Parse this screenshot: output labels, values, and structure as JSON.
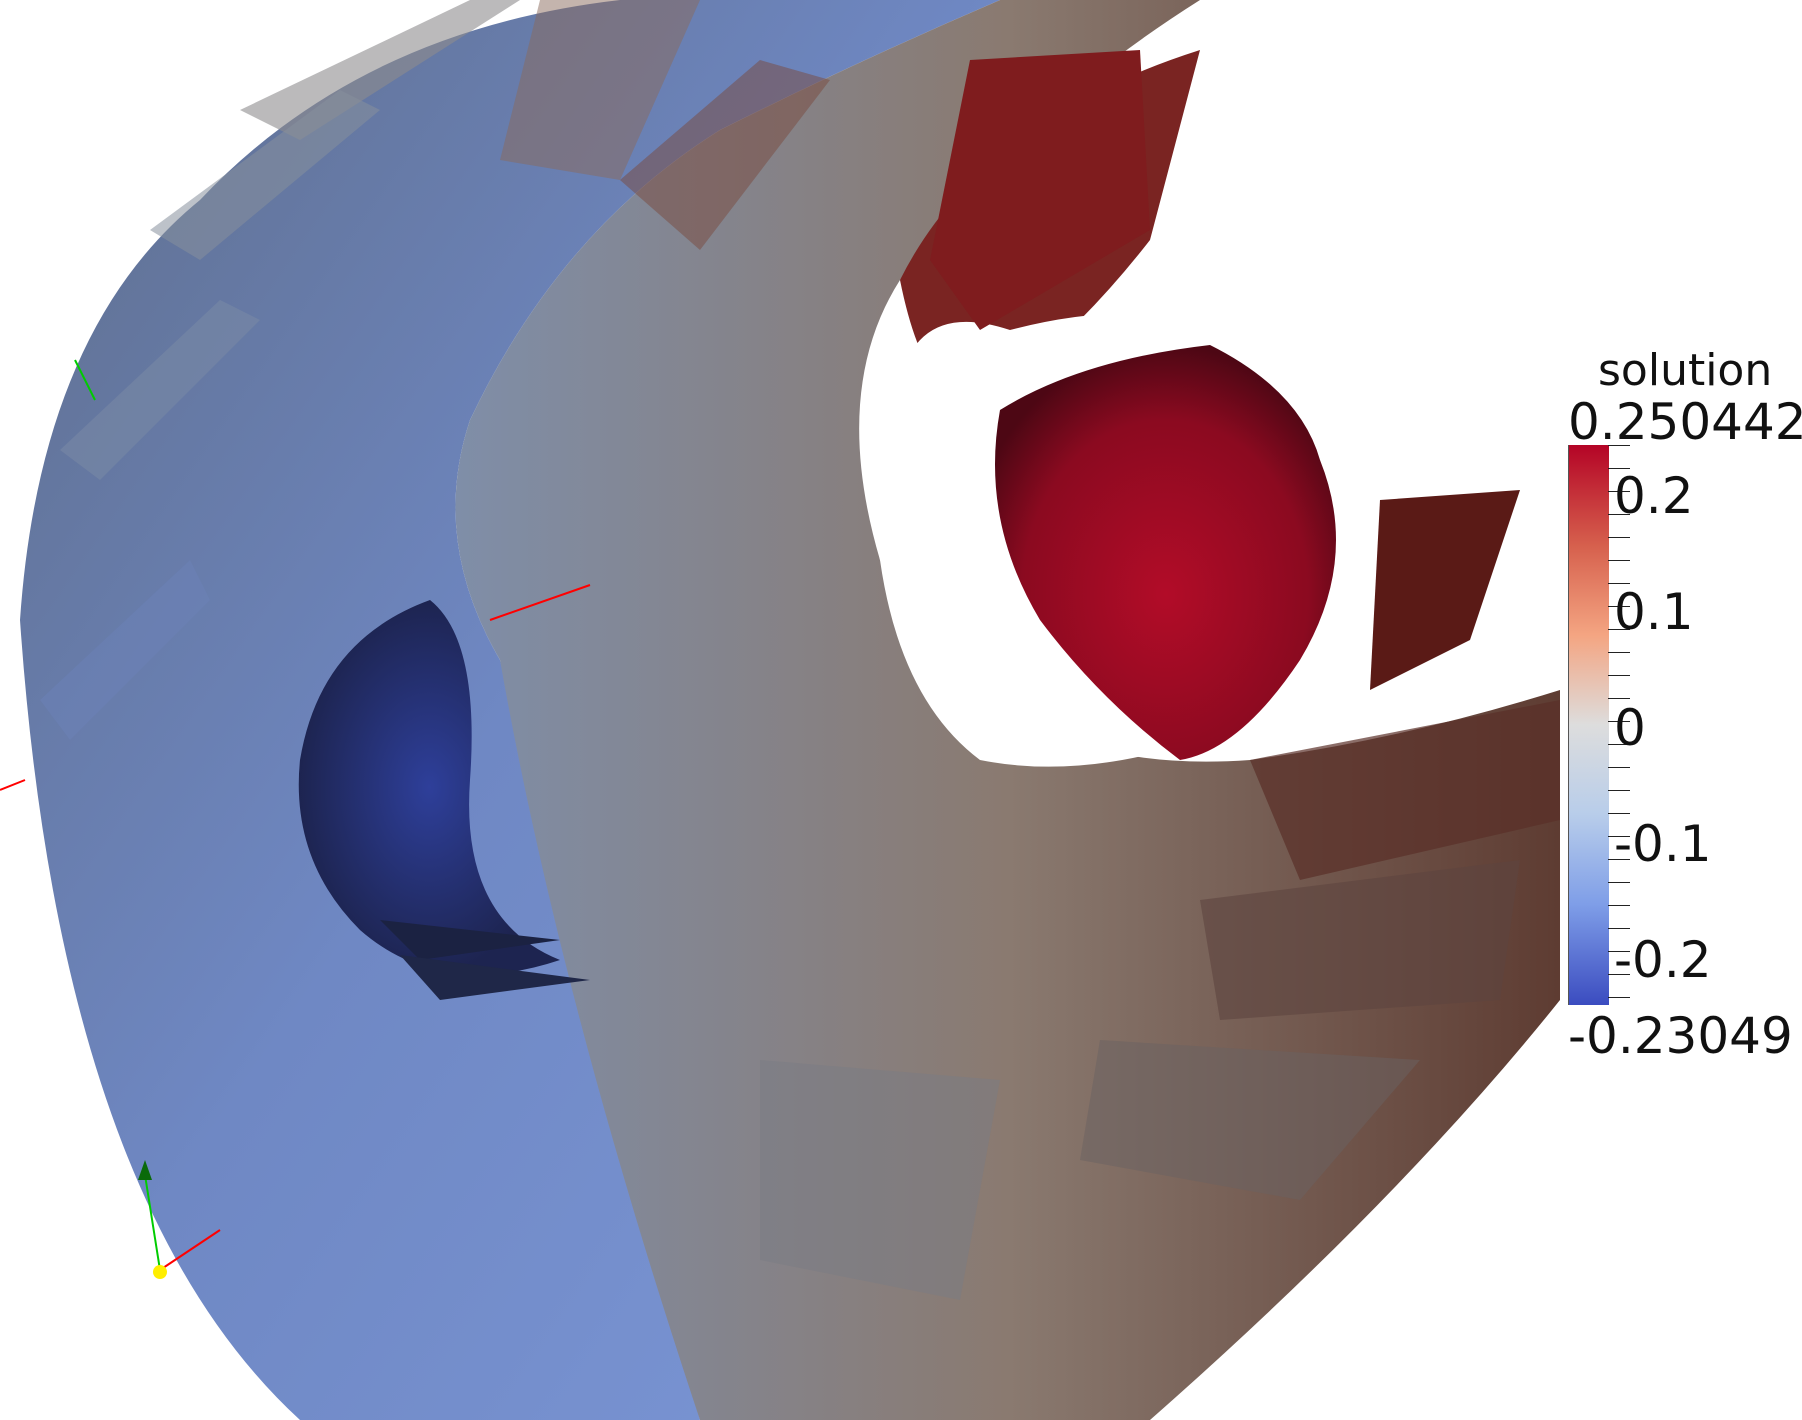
{
  "legend": {
    "title": "solution",
    "max_label": "0.250442",
    "min_label": "-0.23049",
    "tick_labels": [
      "0.2",
      "0.1",
      "0",
      "-0.1",
      "-0.2"
    ],
    "colormap": [
      "#3b4cc0",
      "#7f9ee8",
      "#b8cdea",
      "#dddddd",
      "#f4a582",
      "#d6604d",
      "#b40426"
    ]
  },
  "scene": {
    "subject": "3D isosurface rendering colored by solution field",
    "orientation_axes_colors": [
      "#ff0000",
      "#00cc00",
      "#ffee00"
    ]
  }
}
